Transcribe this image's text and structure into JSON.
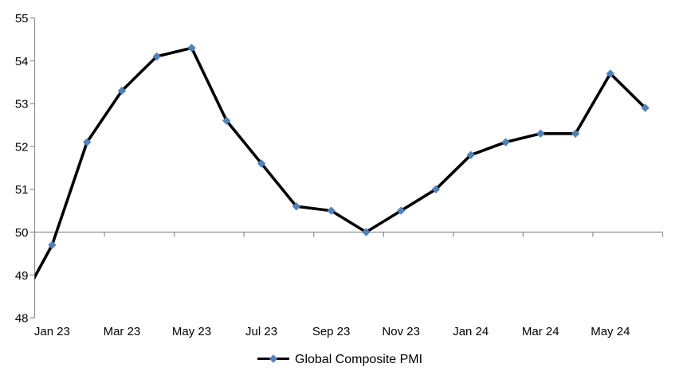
{
  "chart_data": {
    "type": "line",
    "title": "",
    "xlabel": "",
    "ylabel": "",
    "ylim": [
      48,
      55
    ],
    "y_ticks": [
      48,
      49,
      50,
      51,
      52,
      53,
      54,
      55
    ],
    "x_axis_crosses_at": 50,
    "grid": "off",
    "legend_position": "bottom-center",
    "x_tick_labels": [
      "Jan 23",
      "Mar 23",
      "May 23",
      "Jul 23",
      "Sep 23",
      "Nov 23",
      "Jan 24",
      "Mar 24",
      "May 24"
    ],
    "categories": [
      "Dec 22",
      "Jan 23",
      "Feb 23",
      "Mar 23",
      "Apr 23",
      "May 23",
      "Jun 23",
      "Jul 23",
      "Aug 23",
      "Sep 23",
      "Oct 23",
      "Nov 23",
      "Dec 23",
      "Jan 24",
      "Feb 24",
      "Mar 24",
      "Apr 24",
      "May 24",
      "Jun 24"
    ],
    "series": [
      {
        "name": "Global Composite PMI",
        "marker": "diamond",
        "values": [
          48.2,
          49.7,
          52.1,
          53.3,
          54.1,
          54.3,
          52.6,
          51.6,
          50.6,
          50.5,
          50.0,
          50.5,
          51.0,
          51.8,
          52.1,
          52.3,
          52.3,
          53.7,
          52.9
        ]
      }
    ],
    "notes": "first point (Dec 22) clipped at left plot edge; horizontal axis drawn at value 50 with tick marks every second category"
  },
  "legend": {
    "label": "Global Composite PMI"
  },
  "colors": {
    "line": "#000000",
    "marker_fill": "#4F81BD",
    "axis": "#909090",
    "text": "#000000",
    "background": "#ffffff"
  }
}
